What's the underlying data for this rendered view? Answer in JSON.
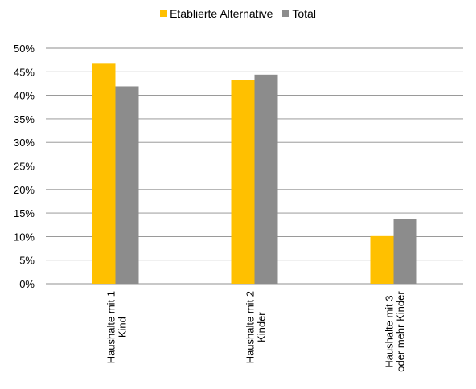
{
  "chart_data": {
    "type": "bar",
    "categories": [
      [
        "Haushalte mit 1",
        "Kind"
      ],
      [
        "Haushalte mit 2",
        "Kinder"
      ],
      [
        "Haushalte mit 3",
        "oder mehr Kinder"
      ]
    ],
    "series": [
      {
        "name": "Etablierte Alternative",
        "values": [
          0.467,
          0.432,
          0.101
        ],
        "color": "#FFC000"
      },
      {
        "name": "Total",
        "values": [
          0.419,
          0.444,
          0.138
        ],
        "color": "#8C8C8C"
      }
    ],
    "ylim": [
      0,
      0.5
    ],
    "yticks": [
      "0%",
      "5%",
      "10%",
      "15%",
      "20%",
      "25%",
      "30%",
      "35%",
      "40%",
      "45%",
      "50%"
    ],
    "grid": true,
    "legend_position": "top-center"
  }
}
